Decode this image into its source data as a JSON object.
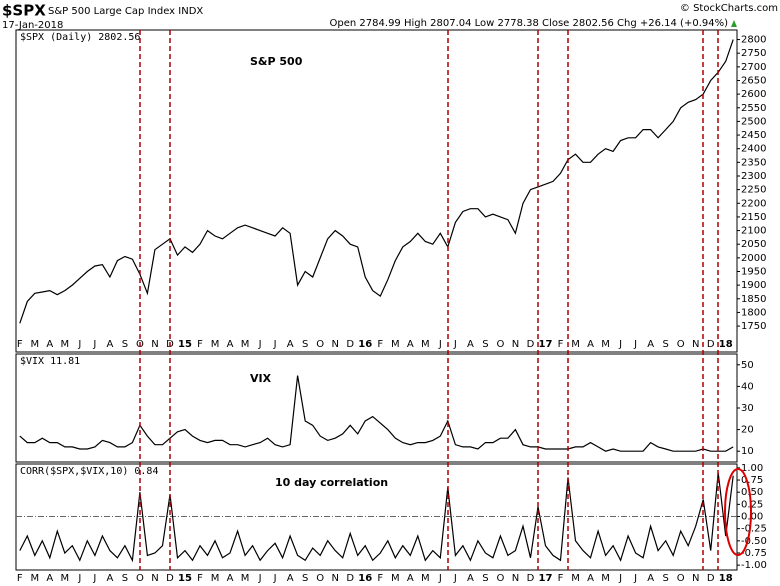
{
  "header": {
    "symbol": "$SPX",
    "name": "S&P 500 Large Cap Index INDX",
    "date": "17-Jan-2018",
    "quote": "Open 2784.99 High 2807.04 Low 2778.38 Close 2802.56 Chg +26.14 (+0.94%)",
    "credit": "© StockCharts.com"
  },
  "chart_data": [
    {
      "type": "line",
      "title": "S&P 500",
      "legend": "$SPX (Daily) 2802.56",
      "color": "#000000",
      "categories": [
        "F",
        null,
        "M",
        null,
        "A",
        null,
        "M",
        null,
        "J",
        null,
        "J",
        null,
        "A",
        null,
        "S",
        null,
        "O",
        null,
        "N",
        null,
        "D",
        null,
        "15",
        null,
        "F",
        null,
        "M",
        null,
        "A",
        null,
        "M",
        null,
        "J",
        null,
        "J",
        null,
        "A",
        null,
        "S",
        null,
        "O",
        null,
        "N",
        null,
        "D",
        null,
        "16",
        null,
        "F",
        null,
        "M",
        null,
        "A",
        null,
        "M",
        null,
        "J",
        null,
        "J",
        null,
        "A",
        null,
        "S",
        null,
        "O",
        null,
        "N",
        null,
        "D",
        null,
        "17",
        null,
        "F",
        null,
        "M",
        null,
        "A",
        null,
        "M",
        null,
        "J",
        null,
        "J",
        null,
        "A",
        null,
        "S",
        null,
        "O",
        null,
        "N",
        null,
        "D",
        null,
        "18",
        null
      ],
      "values": [
        1760,
        1840,
        1870,
        1875,
        1880,
        1865,
        1880,
        1900,
        1925,
        1950,
        1970,
        1975,
        1930,
        1990,
        2005,
        1995,
        1940,
        1870,
        2030,
        2050,
        2070,
        2010,
        2040,
        2020,
        2050,
        2100,
        2080,
        2070,
        2090,
        2110,
        2120,
        2110,
        2100,
        2090,
        2080,
        2110,
        2090,
        1900,
        1950,
        1930,
        2000,
        2070,
        2100,
        2080,
        2050,
        2040,
        1930,
        1880,
        1860,
        1920,
        1990,
        2040,
        2060,
        2090,
        2060,
        2050,
        2090,
        2040,
        2130,
        2170,
        2180,
        2180,
        2150,
        2160,
        2150,
        2140,
        2090,
        2200,
        2250,
        2260,
        2270,
        2280,
        2310,
        2360,
        2380,
        2350,
        2350,
        2380,
        2400,
        2390,
        2430,
        2440,
        2440,
        2470,
        2470,
        2440,
        2470,
        2500,
        2550,
        2570,
        2580,
        2600,
        2650,
        2680,
        2720,
        2800
      ],
      "ylim": [
        1655,
        2835
      ],
      "yticks": [
        1750,
        1800,
        1850,
        1900,
        1950,
        2000,
        2050,
        2100,
        2150,
        2200,
        2250,
        2300,
        2350,
        2400,
        2450,
        2500,
        2550,
        2600,
        2650,
        2700,
        2750,
        2800
      ]
    },
    {
      "type": "line",
      "title": "VIX",
      "legend": "$VIX 11.81",
      "color": "#000000",
      "values": [
        17,
        14,
        14,
        16,
        14,
        14,
        12,
        12,
        11,
        11,
        12,
        15,
        14,
        12,
        12,
        14,
        22,
        17,
        13,
        13,
        16,
        19,
        20,
        17,
        15,
        14,
        15,
        15,
        13,
        13,
        12,
        13,
        14,
        16,
        13,
        12,
        13,
        45,
        24,
        22,
        17,
        15,
        16,
        18,
        22,
        18,
        24,
        26,
        23,
        20,
        16,
        14,
        13,
        14,
        14,
        15,
        17,
        24,
        13,
        12,
        12,
        11,
        14,
        14,
        16,
        16,
        20,
        13,
        12,
        12,
        11,
        11,
        11,
        11,
        12,
        12,
        14,
        12,
        10,
        11,
        10,
        10,
        10,
        10,
        14,
        12,
        11,
        10,
        10,
        10,
        10,
        11,
        10,
        10,
        10,
        12
      ],
      "ylim": [
        5,
        55
      ],
      "yticks": [
        10,
        20,
        30,
        40,
        50
      ]
    },
    {
      "type": "line",
      "title": "10 day correlation",
      "legend": "CORR($SPX,$VIX,10) 0.84",
      "color": "#000000",
      "categories": [
        "F",
        null,
        "M",
        null,
        "A",
        null,
        "M",
        null,
        "J",
        null,
        "J",
        null,
        "A",
        null,
        "S",
        null,
        "O",
        null,
        "N",
        null,
        "D",
        null,
        "15",
        null,
        "F",
        null,
        "M",
        null,
        "A",
        null,
        "M",
        null,
        "J",
        null,
        "J",
        null,
        "A",
        null,
        "S",
        null,
        "O",
        null,
        "N",
        null,
        "D",
        null,
        "16",
        null,
        "F",
        null,
        "M",
        null,
        "A",
        null,
        "M",
        null,
        "J",
        null,
        "J",
        null,
        "A",
        null,
        "S",
        null,
        "O",
        null,
        "N",
        null,
        "D",
        null,
        "17",
        null,
        "F",
        null,
        "M",
        null,
        "A",
        null,
        "M",
        null,
        "J",
        null,
        "J",
        null,
        "A",
        null,
        "S",
        null,
        "O",
        null,
        "N",
        null,
        "D",
        null,
        "18",
        null
      ],
      "values": [
        -0.7,
        -0.4,
        -0.8,
        -0.5,
        -0.85,
        -0.3,
        -0.75,
        -0.6,
        -0.9,
        -0.5,
        -0.8,
        -0.4,
        -0.7,
        -0.85,
        -0.6,
        -0.9,
        0.5,
        -0.8,
        -0.75,
        -0.6,
        0.45,
        -0.85,
        -0.7,
        -0.9,
        -0.6,
        -0.8,
        -0.5,
        -0.85,
        -0.75,
        -0.3,
        -0.8,
        -0.6,
        -0.9,
        -0.7,
        -0.55,
        -0.85,
        -0.4,
        -0.8,
        -0.9,
        -0.65,
        -0.8,
        -0.5,
        -0.7,
        -0.85,
        -0.35,
        -0.8,
        -0.6,
        -0.9,
        -0.75,
        -0.5,
        -0.85,
        -0.6,
        -0.8,
        -0.4,
        -0.9,
        -0.7,
        -0.85,
        0.6,
        -0.8,
        -0.6,
        -0.9,
        -0.5,
        -0.75,
        -0.85,
        -0.4,
        -0.8,
        -0.7,
        -0.2,
        -0.85,
        0.2,
        -0.6,
        -0.8,
        -0.9,
        0.8,
        -0.5,
        -0.7,
        -0.85,
        -0.3,
        -0.8,
        -0.6,
        -0.9,
        -0.4,
        -0.75,
        -0.85,
        -0.2,
        -0.7,
        -0.5,
        -0.8,
        -0.3,
        -0.6,
        -0.2,
        0.35,
        -0.7,
        0.9,
        -0.4,
        0.84
      ],
      "ylim": [
        -1.1,
        1.08
      ],
      "hline": 0,
      "yticks": [
        {
          "value": -1,
          "label": "-1.00"
        },
        {
          "value": -0.75,
          "label": "-0.75"
        },
        {
          "value": -0.5,
          "label": "-0.50"
        },
        {
          "value": -0.25,
          "label": "-0.25"
        },
        {
          "value": 0,
          "label": "0.00"
        },
        {
          "value": 0.25,
          "label": "0.25"
        },
        {
          "value": 0.5,
          "label": "0.50"
        },
        {
          "value": 0.75,
          "label": "0.75"
        },
        {
          "value": 1,
          "label": "1.00"
        }
      ]
    }
  ]
}
